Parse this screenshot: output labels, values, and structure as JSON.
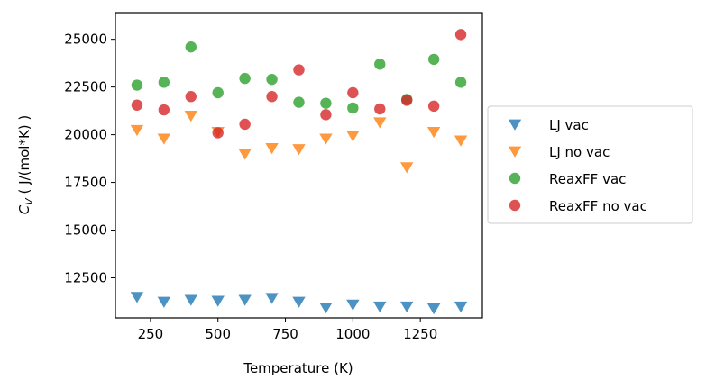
{
  "chart_data": {
    "type": "scatter",
    "xlabel": "Temperature (K)",
    "ylabel_prefix": "C",
    "ylabel_sub": "V",
    "ylabel_suffix": " ( J/(mol*K) )",
    "xlim": [
      120,
      1480
    ],
    "ylim": [
      10400,
      26400
    ],
    "xticks": [
      250,
      500,
      750,
      1000,
      1250
    ],
    "xtick_labels": [
      "250",
      "500",
      "750",
      "1000",
      "1250"
    ],
    "yticks": [
      12500,
      15000,
      17500,
      20000,
      22500,
      25000
    ],
    "ytick_labels": [
      "12500",
      "15000",
      "17500",
      "20000",
      "22500",
      "25000"
    ],
    "grid": false,
    "legend_position": "right, outside",
    "series": [
      {
        "name": "LJ vac",
        "color": "#1f77b4",
        "marker": "triangle-down",
        "x": [
          200,
          300,
          400,
          500,
          600,
          700,
          800,
          900,
          1000,
          1100,
          1200,
          1300,
          1400
        ],
        "y": [
          11500,
          11250,
          11350,
          11300,
          11350,
          11450,
          11250,
          10950,
          11100,
          11000,
          11000,
          10900,
          11000
        ]
      },
      {
        "name": "LJ no vac",
        "color": "#ff7f0e",
        "marker": "triangle-down",
        "x": [
          200,
          300,
          400,
          500,
          600,
          700,
          800,
          900,
          1000,
          1100,
          1200,
          1300,
          1400
        ],
        "y": [
          20250,
          19800,
          21000,
          20150,
          19000,
          19300,
          19250,
          19800,
          19950,
          20650,
          18300,
          20150,
          19700
        ]
      },
      {
        "name": "ReaxFF vac",
        "color": "#2ca02c",
        "marker": "circle",
        "x": [
          200,
          300,
          400,
          500,
          600,
          700,
          800,
          900,
          1000,
          1100,
          1200,
          1300,
          1400
        ],
        "y": [
          22600,
          22750,
          24600,
          22200,
          22950,
          22900,
          21700,
          21650,
          21400,
          23700,
          21850,
          23950,
          22750
        ]
      },
      {
        "name": "ReaxFF no vac",
        "color": "#d62728",
        "marker": "circle",
        "x": [
          200,
          300,
          400,
          500,
          600,
          700,
          800,
          900,
          1000,
          1100,
          1200,
          1300,
          1400
        ],
        "y": [
          21550,
          21300,
          22000,
          20100,
          20550,
          22000,
          23400,
          21050,
          22200,
          21350,
          21800,
          21500,
          25250
        ]
      }
    ]
  }
}
